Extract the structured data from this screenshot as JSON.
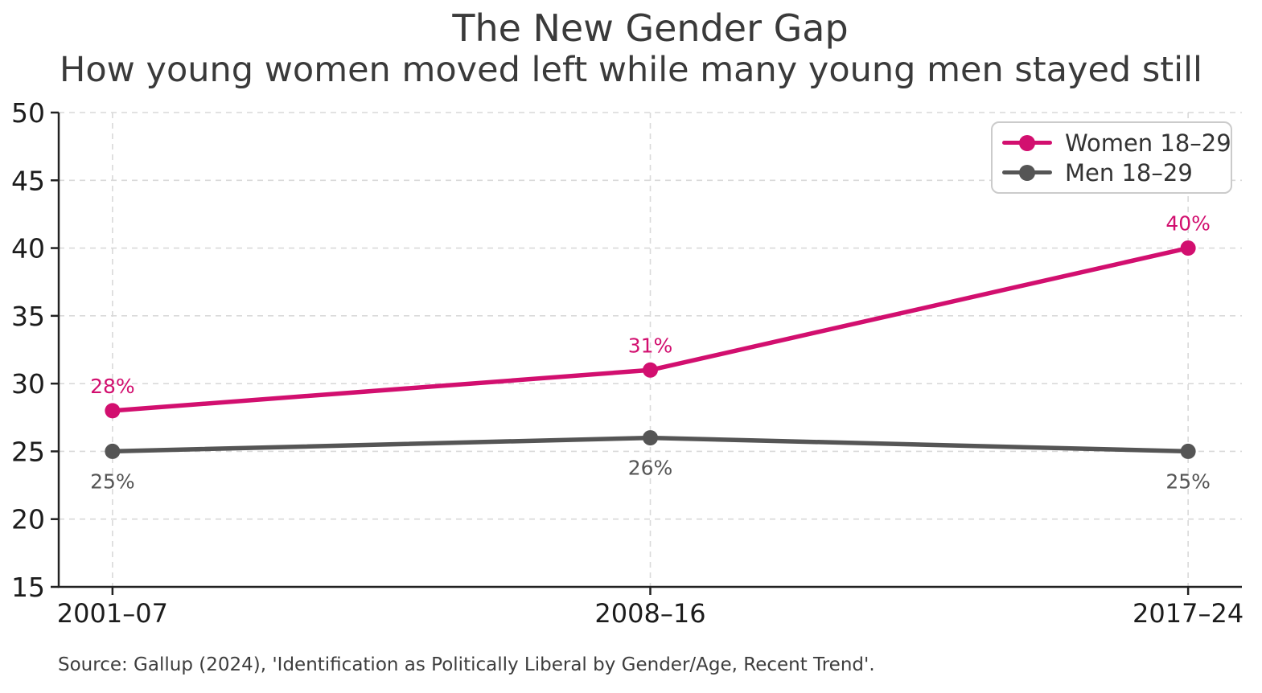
{
  "chart_data": {
    "type": "line",
    "title": "The New Gender Gap",
    "subtitle": "How young women moved left while many young men stayed still",
    "source_note": "Source: Gallup (2024), 'Identification as Politically Liberal by Gender/Age, Recent Trend'.",
    "categories": [
      "2001–07",
      "2008–16",
      "2017–24"
    ],
    "series": [
      {
        "name": "Women 18–29",
        "values": [
          28,
          31,
          40
        ],
        "point_labels": [
          "28%",
          "31%",
          "40%"
        ],
        "color": "#d20f6f",
        "label_position": "above"
      },
      {
        "name": "Men 18–29",
        "values": [
          25,
          26,
          25
        ],
        "point_labels": [
          "25%",
          "26%",
          "25%"
        ],
        "color": "#555555",
        "label_position": "below"
      }
    ],
    "ylim": [
      15,
      50
    ],
    "yticks": [
      15,
      20,
      25,
      30,
      35,
      40,
      45,
      50
    ],
    "grid": true,
    "legend_position": "upper right",
    "styles": {
      "background": "#ffffff",
      "axis_color": "#222222",
      "tick_label_color": "#1c1c1c",
      "grid_color": "#d9d9d9",
      "title_color": "#3a3a3a",
      "source_color": "#3d3d3d",
      "legend_border": "#cbcbcb",
      "legend_text": "#333333"
    }
  }
}
